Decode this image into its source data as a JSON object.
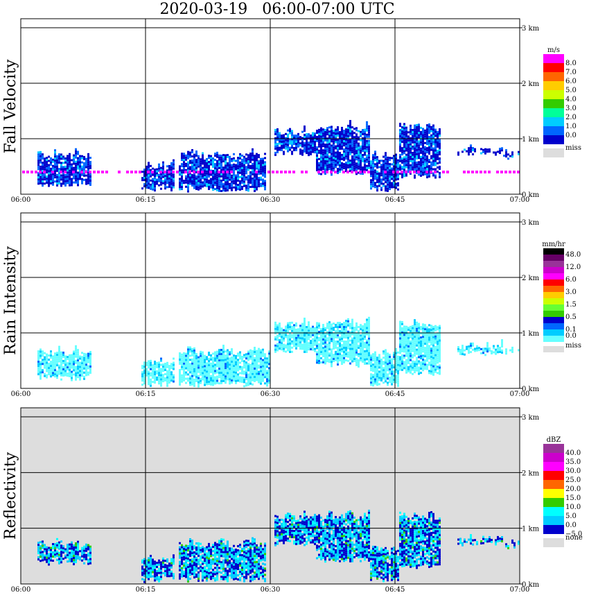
{
  "title": "2020-03-19   06:00-07:00 UTC",
  "x_ticks": [
    "06:00",
    "06:15",
    "06:30",
    "06:45",
    "07:00"
  ],
  "y_ticks": [
    "0 km",
    "1 km",
    "2 km",
    "3 km"
  ],
  "chart_data": [
    {
      "type": "heatmap",
      "ylabel": "Fall Velocity",
      "xlim": [
        "06:00",
        "07:00"
      ],
      "ylim_km": [
        0,
        3.0
      ],
      "background": "#ffffff",
      "colorbar": {
        "unit": "m/s",
        "labels": [
          "8.0",
          "7.0",
          "6.0",
          "5.0",
          "4.0",
          "3.0",
          "2.0",
          "1.0",
          "0.0"
        ],
        "colors": [
          "#ff00ff",
          "#ff0000",
          "#ff6600",
          "#ffcc00",
          "#ccff00",
          "#33cc00",
          "#00ff99",
          "#00ccff",
          "#0066ff",
          "#0000cc"
        ],
        "missing_label": "miss",
        "missing_color": "#dddddd"
      },
      "echo_regions": [
        {
          "t0": 2.0,
          "t1": 8.5,
          "top": 0.85,
          "base": 0.15,
          "level": 1
        },
        {
          "t0": 14.5,
          "t1": 18.5,
          "top": 0.65,
          "base": 0.05,
          "level": 1
        },
        {
          "t0": 19.0,
          "t1": 29.5,
          "top": 0.85,
          "base": 0.05,
          "level": 1
        },
        {
          "t0": 30.5,
          "t1": 35.5,
          "top": 1.25,
          "base": 0.7,
          "level": 1
        },
        {
          "t0": 35.5,
          "t1": 42.0,
          "top": 1.35,
          "base": 0.35,
          "level": 1
        },
        {
          "t0": 42.0,
          "t1": 45.5,
          "top": 0.8,
          "base": 0.05,
          "level": 1
        },
        {
          "t0": 45.5,
          "t1": 50.5,
          "top": 1.35,
          "base": 0.3,
          "level": 1
        },
        {
          "t0": 52.5,
          "t1": 58.0,
          "top": 0.95,
          "base": 0.7,
          "level": 1
        },
        {
          "t0": 58.0,
          "t1": 60.0,
          "top": 0.85,
          "base": 0.65,
          "level": 1
        }
      ],
      "bright_line": {
        "height_km": 0.4,
        "color": "#ff00ff"
      }
    },
    {
      "type": "heatmap",
      "ylabel": "Rain Intensity",
      "xlim": [
        "06:00",
        "07:00"
      ],
      "ylim_km": [
        0,
        3.0
      ],
      "background": "#ffffff",
      "colorbar": {
        "unit": "mm/hr",
        "labels": [
          "48.0",
          "",
          "12.0",
          "",
          "6.0",
          "",
          "3.0",
          "",
          "1.5",
          "",
          "0.5",
          "",
          "0.1",
          "0.0"
        ],
        "colors": [
          "#000000",
          "#660066",
          "#993399",
          "#cc00cc",
          "#ff00ff",
          "#ff0000",
          "#ff6600",
          "#ffcc00",
          "#ccff00",
          "#66ff33",
          "#33cc00",
          "#0000cc",
          "#0066ff",
          "#00ccff",
          "#66ffff"
        ],
        "missing_label": "miss",
        "missing_color": "#dddddd"
      },
      "echo_regions": [
        {
          "t0": 2.0,
          "t1": 8.5,
          "top": 0.8,
          "base": 0.15,
          "level": 0
        },
        {
          "t0": 14.5,
          "t1": 18.5,
          "top": 0.6,
          "base": 0.05,
          "level": 0
        },
        {
          "t0": 19.0,
          "t1": 30.0,
          "top": 0.8,
          "base": 0.05,
          "level": 0
        },
        {
          "t0": 30.5,
          "t1": 35.5,
          "top": 1.3,
          "base": 0.65,
          "level": 0
        },
        {
          "t0": 35.5,
          "t1": 42.0,
          "top": 1.3,
          "base": 0.4,
          "level": 0
        },
        {
          "t0": 42.0,
          "t1": 45.5,
          "top": 0.75,
          "base": 0.05,
          "level": 0
        },
        {
          "t0": 45.5,
          "t1": 50.5,
          "top": 1.3,
          "base": 0.25,
          "level": 0
        },
        {
          "t0": 52.5,
          "t1": 58.0,
          "top": 0.9,
          "base": 0.6,
          "level": 0
        },
        {
          "t0": 58.0,
          "t1": 60.0,
          "top": 0.8,
          "base": 0.6,
          "level": 0
        }
      ]
    },
    {
      "type": "heatmap",
      "ylabel": "Reflectivity",
      "xlim": [
        "06:00",
        "07:00"
      ],
      "ylim_km": [
        0,
        3.0
      ],
      "background": "#dddddd",
      "colorbar": {
        "unit": "dBZ",
        "labels": [
          "40.0",
          "35.0",
          "30.0",
          "25.0",
          "20.0",
          "15.0",
          "10.0",
          "5.0",
          "0.0",
          "−5.0"
        ],
        "colors": [
          "#993399",
          "#cc00cc",
          "#ff00ff",
          "#ff0000",
          "#ff6600",
          "#ffff00",
          "#33cc00",
          "#00ffff",
          "#00ccff",
          "#0000cc"
        ],
        "missing_label": "none",
        "missing_color": "#dddddd"
      },
      "echo_regions": [
        {
          "t0": 2.0,
          "t1": 8.5,
          "top": 0.85,
          "base": 0.35,
          "level": 2
        },
        {
          "t0": 14.5,
          "t1": 18.5,
          "top": 0.6,
          "base": 0.05,
          "level": 2
        },
        {
          "t0": 19.0,
          "t1": 29.5,
          "top": 0.85,
          "base": 0.05,
          "level": 2
        },
        {
          "t0": 30.5,
          "t1": 35.5,
          "top": 1.35,
          "base": 0.7,
          "level": 2
        },
        {
          "t0": 35.5,
          "t1": 42.0,
          "top": 1.35,
          "base": 0.4,
          "level": 2
        },
        {
          "t0": 42.0,
          "t1": 45.5,
          "top": 0.75,
          "base": 0.05,
          "level": 2
        },
        {
          "t0": 45.5,
          "t1": 50.5,
          "top": 1.35,
          "base": 0.3,
          "level": 2
        },
        {
          "t0": 52.5,
          "t1": 58.0,
          "top": 0.95,
          "base": 0.7,
          "level": 2
        },
        {
          "t0": 58.0,
          "t1": 60.0,
          "top": 0.85,
          "base": 0.65,
          "level": 2
        }
      ]
    }
  ]
}
